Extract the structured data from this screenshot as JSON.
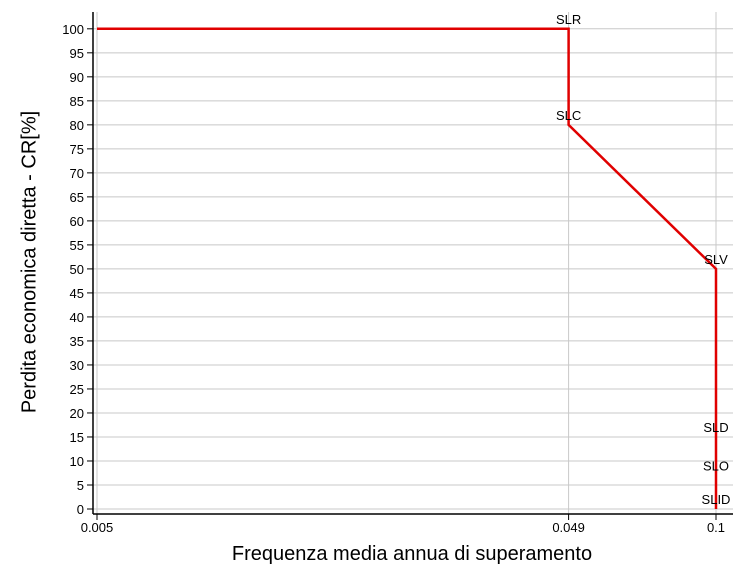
{
  "chart_data": {
    "type": "line",
    "x_label": "Frequenza media annua di superamento",
    "y_label": "Perdita economica diretta - CR[%]",
    "xlog": true,
    "grid": true,
    "xlim": [
      0.005,
      0.1
    ],
    "xticks": [
      0.005,
      0.049,
      0.1
    ],
    "ylim": [
      0,
      103.5
    ],
    "yticks": [
      0,
      5,
      10,
      15,
      20,
      25,
      30,
      35,
      40,
      45,
      50,
      55,
      60,
      65,
      70,
      75,
      80,
      85,
      90,
      95,
      100
    ],
    "series": [
      {
        "color": "#e00000",
        "x": [
          0.005,
          0.049,
          0.049,
          0.1,
          0.1,
          0.1,
          0.1
        ],
        "values": [
          100,
          100,
          80,
          50,
          15,
          7,
          0
        ],
        "point_labels": [
          null,
          "SLR",
          "SLC",
          "SLV",
          "SLD",
          "SLO",
          "SLID"
        ]
      }
    ]
  }
}
